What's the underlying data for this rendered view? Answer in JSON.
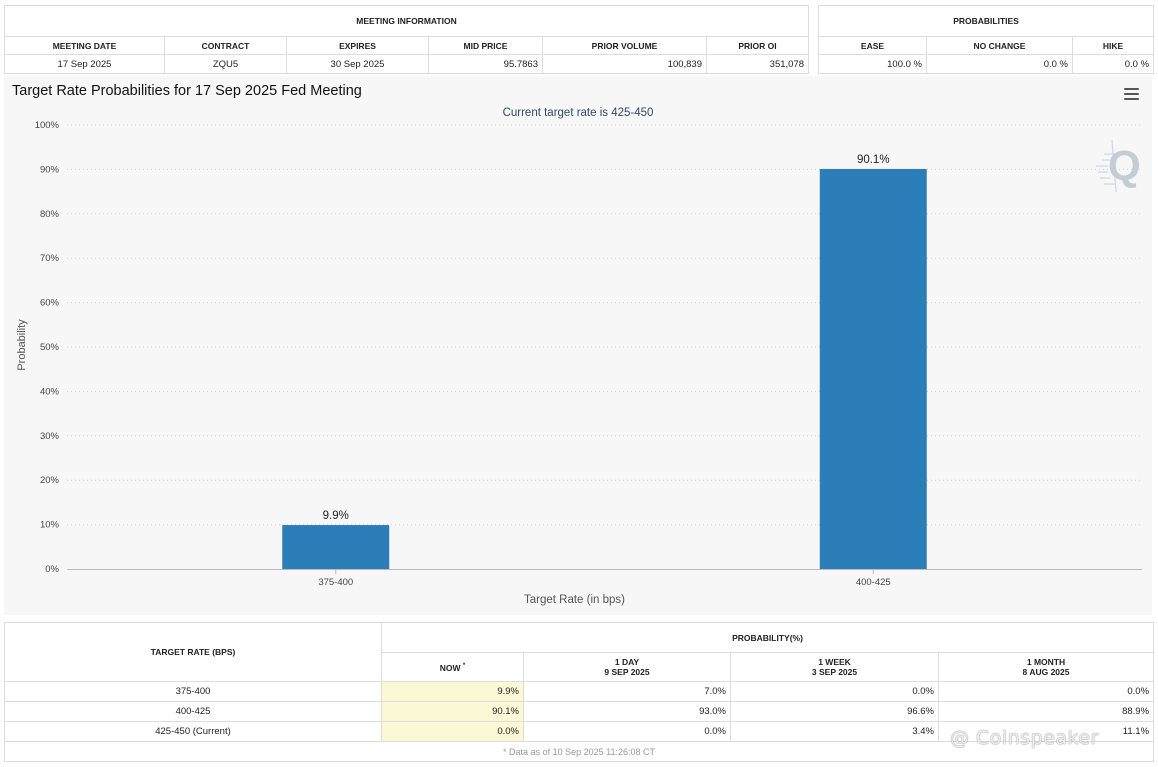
{
  "meeting_info": {
    "title": "MEETING INFORMATION",
    "headers": [
      "MEETING DATE",
      "CONTRACT",
      "EXPIRES",
      "MID PRICE",
      "PRIOR VOLUME",
      "PRIOR OI"
    ],
    "values": [
      "17 Sep 2025",
      "ZQU5",
      "30 Sep 2025",
      "95.7863",
      "100,839",
      "351,078"
    ]
  },
  "probabilities": {
    "title": "PROBABILITIES",
    "headers": [
      "EASE",
      "NO CHANGE",
      "HIKE"
    ],
    "values": [
      "100.0 %",
      "0.0 %",
      "0.0 %"
    ]
  },
  "chart_data": {
    "type": "bar",
    "title": "Target Rate Probabilities for 17 Sep 2025 Fed Meeting",
    "subtitle": "Current target rate is 425-450",
    "xlabel": "Target Rate (in bps)",
    "ylabel": "Probability",
    "categories": [
      "375-400",
      "400-425"
    ],
    "values": [
      9.9,
      90.1
    ],
    "data_labels": [
      "9.9%",
      "90.1%"
    ],
    "ylim": [
      0,
      100
    ],
    "yticks": [
      "0%",
      "10%",
      "20%",
      "30%",
      "40%",
      "50%",
      "60%",
      "70%",
      "80%",
      "90%",
      "100%"
    ],
    "bar_color": "#2b7eb8",
    "grid": true
  },
  "rate_table": {
    "col0_header": "TARGET RATE (BPS)",
    "group_header": "PROBABILITY(%)",
    "now_header": "NOW",
    "now_marker": "*",
    "periods": [
      {
        "label": "1 DAY",
        "date": "9 SEP 2025"
      },
      {
        "label": "1 WEEK",
        "date": "3 SEP 2025"
      },
      {
        "label": "1 MONTH",
        "date": "8 AUG 2025"
      }
    ],
    "rows": [
      {
        "rate": "375-400",
        "now": "9.9%",
        "day": "7.0%",
        "week": "0.0%",
        "month": "0.0%"
      },
      {
        "rate": "400-425",
        "now": "90.1%",
        "day": "93.0%",
        "week": "96.6%",
        "month": "88.9%"
      },
      {
        "rate": "425-450 (Current)",
        "now": "0.0%",
        "day": "0.0%",
        "week": "3.4%",
        "month": "11.1%"
      }
    ],
    "footnote": "* Data as of 10 Sep 2025 11:26:08 CT"
  },
  "watermark": "@ Coinspeaker",
  "icons": [
    "menu-icon",
    "q-logo-icon"
  ]
}
